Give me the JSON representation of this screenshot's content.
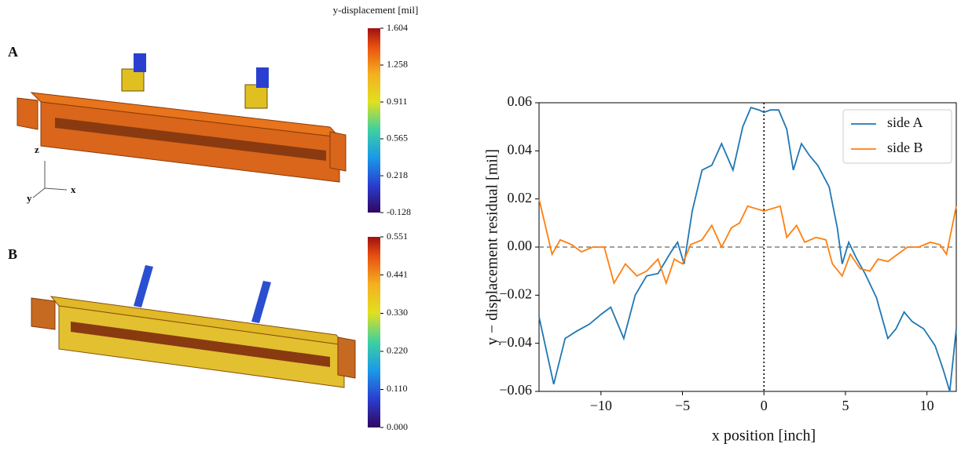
{
  "panels": {
    "labels": [
      "A",
      "B"
    ],
    "axes": [
      "x",
      "y",
      "z"
    ]
  },
  "colorbars": [
    {
      "title": "y-displacement [mil]",
      "lim": [
        -0.128,
        1.604
      ],
      "ticks": [
        1.604,
        1.258,
        0.911,
        0.565,
        0.218,
        -0.128
      ]
    },
    {
      "lim": [
        0,
        0.551
      ],
      "ticks": [
        0.551,
        0.441,
        {
          "value": 0.33,
          "label": "0.330"
        },
        {
          "value": 0.22,
          "label": "0.220"
        },
        {
          "value": 0.11,
          "label": "0.110"
        },
        {
          "value": 0,
          "label": "0.000"
        }
      ]
    }
  ],
  "chart_data": {
    "type": "line",
    "xlabel": "x position [inch]",
    "ylabel": "y − displacement residual [mil]",
    "xlim": [
      -13.8,
      11.8
    ],
    "ylim": [
      -0.06,
      0.06
    ],
    "xticks": [
      {
        "value": -10,
        "label": "−10"
      },
      {
        "value": -5,
        "label": "−5"
      },
      0,
      5,
      10
    ],
    "yticks": [
      {
        "value": -0.06,
        "label": "−0.06"
      },
      {
        "value": -0.04,
        "label": "−0.04"
      },
      {
        "value": -0.02,
        "label": "−0.02"
      },
      {
        "value": 0,
        "label": "0.00"
      },
      0.02,
      0.04,
      0.06
    ],
    "reference_lines": {
      "y": 0,
      "x": 0
    },
    "legend": "upper right",
    "series": [
      {
        "name": "side A",
        "color": "#1f77b4",
        "x": [
          -13.8,
          -12.9,
          -12.2,
          -11.5,
          -10.7,
          -10.0,
          -9.4,
          -8.6,
          -7.9,
          -7.2,
          -6.5,
          -5.7,
          -5.3,
          -4.9,
          -4.4,
          -3.8,
          -3.2,
          -2.6,
          -1.9,
          -1.3,
          -0.8,
          -0.3,
          0,
          0.4,
          0.9,
          1.4,
          1.8,
          2.3,
          2.8,
          3.3,
          4.0,
          4.5,
          4.8,
          5.2,
          5.7,
          6.2,
          6.9,
          7.6,
          8.1,
          8.6,
          9.1,
          9.8,
          10.5,
          11.0,
          11.4,
          11.8
        ],
        "values": [
          -0.029,
          -0.057,
          -0.038,
          -0.035,
          -0.032,
          -0.028,
          -0.025,
          -0.038,
          -0.02,
          -0.012,
          -0.011,
          -0.002,
          0.002,
          -0.007,
          0.015,
          0.032,
          0.034,
          0.043,
          0.032,
          0.05,
          0.058,
          0.057,
          0.056,
          0.057,
          0.057,
          0.049,
          0.032,
          0.043,
          0.038,
          0.034,
          0.025,
          0.008,
          -0.007,
          0.002,
          -0.005,
          -0.011,
          -0.021,
          -0.038,
          -0.034,
          -0.027,
          -0.031,
          -0.034,
          -0.041,
          -0.051,
          -0.06,
          -0.034
        ]
      },
      {
        "name": "side B",
        "color": "#ff7f0e",
        "x": [
          -13.8,
          -13.0,
          -12.5,
          -11.8,
          -11.2,
          -10.5,
          -9.8,
          -9.2,
          -8.5,
          -7.8,
          -7.2,
          -6.5,
          -6.0,
          -5.5,
          -5.0,
          -4.5,
          -3.8,
          -3.2,
          -2.6,
          -2.0,
          -1.5,
          -1.0,
          -0.5,
          0,
          0.5,
          1.0,
          1.4,
          2.0,
          2.5,
          3.2,
          3.8,
          4.2,
          4.8,
          5.3,
          5.9,
          6.5,
          7.0,
          7.6,
          8.2,
          8.8,
          9.5,
          10.2,
          10.8,
          11.2,
          11.8
        ],
        "values": [
          0.02,
          -0.003,
          0.003,
          0.001,
          -0.002,
          0,
          0,
          -0.015,
          -0.007,
          -0.012,
          -0.01,
          -0.005,
          -0.015,
          -0.005,
          -0.007,
          0.001,
          0.003,
          0.009,
          0,
          0.008,
          0.01,
          0.017,
          0.016,
          0.015,
          0.016,
          0.017,
          0.004,
          0.009,
          0.002,
          0.004,
          0.003,
          -0.007,
          -0.012,
          -0.003,
          -0.009,
          -0.01,
          -0.005,
          -0.006,
          -0.003,
          0,
          0,
          0.002,
          0.001,
          -0.003,
          0.017
        ]
      }
    ]
  }
}
